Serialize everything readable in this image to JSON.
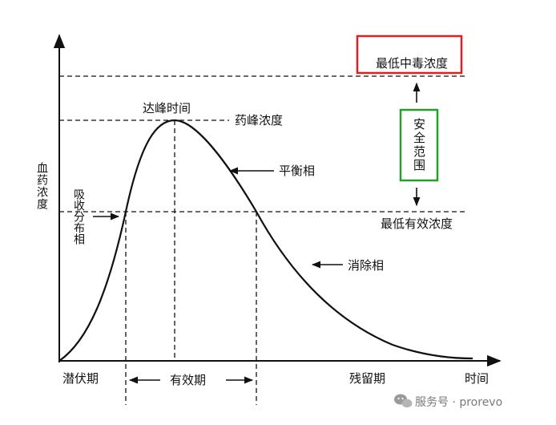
{
  "axes": {
    "y_label": "血药浓度",
    "x_label": "时间"
  },
  "levels": {
    "max_toxic": "最低中毒浓度",
    "peak": "药峰浓度",
    "min_effective": "最低有效浓度"
  },
  "points": {
    "peak_time": "达峰时间"
  },
  "phases": {
    "absorption": "吸收分布相",
    "balance": "平衡相",
    "elimination": "消除相"
  },
  "periods": {
    "latent": "潜伏期",
    "effective": "有效期",
    "residual": "残留期"
  },
  "range": {
    "safe": "安全范围"
  },
  "watermark": {
    "text": "服务号 · prorevo"
  },
  "colors": {
    "toxic_box": "#e02020",
    "safe_box": "#22a02a",
    "ink": "#111111"
  }
}
